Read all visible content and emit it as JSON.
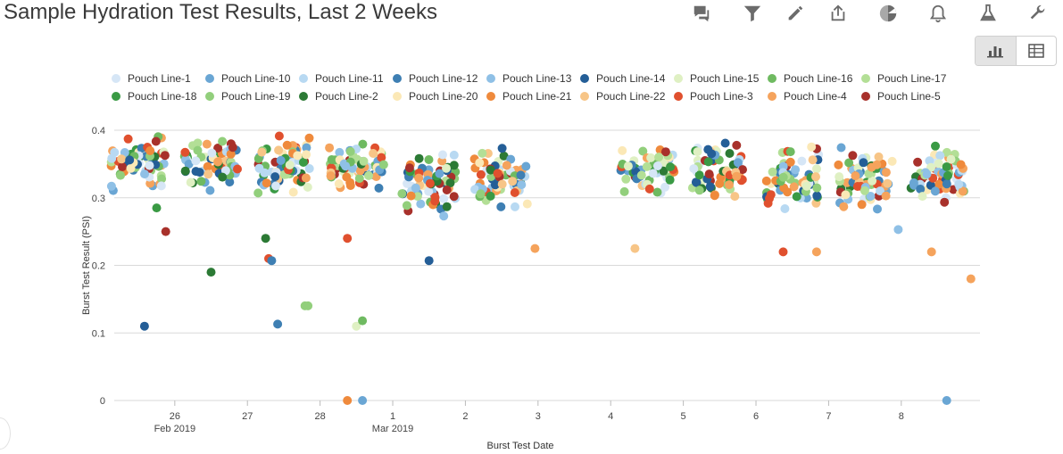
{
  "header": {
    "title": "Sample Hydration Test Results, Last 2 Weeks"
  },
  "toolbar": {
    "icons": [
      "comments-icon",
      "filter-icon",
      "pencil-icon",
      "share-icon",
      "pie-chart-icon",
      "bell-icon",
      "flask-icon",
      "wrench-icon"
    ],
    "view_toggle": [
      "bar-chart-icon",
      "table-icon"
    ],
    "icon_color": "#6b6b6b"
  },
  "chart_data": {
    "type": "scatter",
    "ylabel": "Burst Test Result (PSI)",
    "xlabel": "Burst Test Date",
    "ylim": [
      0,
      0.4
    ],
    "yticks": [
      "0",
      "0.1",
      "0.2",
      "0.3",
      "0.4"
    ],
    "yticks_values": [
      0,
      0.1,
      0.2,
      0.3,
      0.4
    ],
    "xticks": [
      "26",
      "27",
      "28",
      "1",
      "2",
      "3",
      "4",
      "5",
      "6",
      "7",
      "8"
    ],
    "xticks_values": [
      "2019-02-26",
      "2019-02-27",
      "2019-02-28",
      "2019-03-01",
      "2019-03-02",
      "2019-03-03",
      "2019-03-04",
      "2019-03-05",
      "2019-03-06",
      "2019-03-07",
      "2019-03-08"
    ],
    "month_labels": [
      {
        "text": "Feb 2019",
        "date": "2019-02-26"
      },
      {
        "text": "Mar 2019",
        "date": "2019-03-01"
      }
    ],
    "xlim": [
      "2019-02-25T04:00",
      "2019-03-09T02:00"
    ],
    "grid": true,
    "legend_position": "top",
    "series": [
      {
        "name": "Pouch Line-1",
        "color": "#d6e6f6"
      },
      {
        "name": "Pouch Line-10",
        "color": "#6aa6d4"
      },
      {
        "name": "Pouch Line-11",
        "color": "#b8d9f2"
      },
      {
        "name": "Pouch Line-12",
        "color": "#3e7fb3"
      },
      {
        "name": "Pouch Line-13",
        "color": "#8fc0e6"
      },
      {
        "name": "Pouch Line-14",
        "color": "#245e97"
      },
      {
        "name": "Pouch Line-15",
        "color": "#dff0c3"
      },
      {
        "name": "Pouch Line-16",
        "color": "#6fba61"
      },
      {
        "name": "Pouch Line-17",
        "color": "#b3df96"
      },
      {
        "name": "Pouch Line-18",
        "color": "#3a9a44"
      },
      {
        "name": "Pouch Line-19",
        "color": "#92cf7c"
      },
      {
        "name": "Pouch Line-2",
        "color": "#2c7a35"
      },
      {
        "name": "Pouch Line-20",
        "color": "#fbe8b6"
      },
      {
        "name": "Pouch Line-21",
        "color": "#ef8a3c"
      },
      {
        "name": "Pouch Line-22",
        "color": "#f7c587"
      },
      {
        "name": "Pouch Line-3",
        "color": "#e0502e"
      },
      {
        "name": "Pouch Line-4",
        "color": "#f5a35c"
      },
      {
        "name": "Pouch Line-5",
        "color": "#a8312b"
      }
    ],
    "day_clusters": [
      {
        "date": "2019-02-25",
        "count": 70,
        "low": 0.3,
        "high": 0.4
      },
      {
        "date": "2019-02-26",
        "count": 60,
        "low": 0.3,
        "high": 0.4
      },
      {
        "date": "2019-02-27",
        "count": 70,
        "low": 0.3,
        "high": 0.4
      },
      {
        "date": "2019-02-28",
        "count": 70,
        "low": 0.3,
        "high": 0.39
      },
      {
        "date": "2019-03-01",
        "count": 75,
        "low": 0.26,
        "high": 0.38
      },
      {
        "date": "2019-03-02",
        "count": 70,
        "low": 0.27,
        "high": 0.39
      },
      {
        "date": "2019-03-04",
        "count": 60,
        "low": 0.29,
        "high": 0.39
      },
      {
        "date": "2019-03-05",
        "count": 65,
        "low": 0.28,
        "high": 0.4
      },
      {
        "date": "2019-03-06",
        "count": 65,
        "low": 0.27,
        "high": 0.39
      },
      {
        "date": "2019-03-07",
        "count": 65,
        "low": 0.27,
        "high": 0.39
      },
      {
        "date": "2019-03-08",
        "count": 70,
        "low": 0.27,
        "high": 0.39
      }
    ],
    "outliers": [
      {
        "series": "Pouch Line-14",
        "x": "2019-02-25T14:00",
        "y": 0.11
      },
      {
        "series": "Pouch Line-5",
        "x": "2019-02-25T21:00",
        "y": 0.25
      },
      {
        "series": "Pouch Line-18",
        "x": "2019-02-25T18:00",
        "y": 0.285
      },
      {
        "series": "Pouch Line-2",
        "x": "2019-02-26T12:00",
        "y": 0.19
      },
      {
        "series": "Pouch Line-2",
        "x": "2019-02-27T06:00",
        "y": 0.24
      },
      {
        "series": "Pouch Line-3",
        "x": "2019-02-27T07:00",
        "y": 0.21
      },
      {
        "series": "Pouch Line-12",
        "x": "2019-02-27T08:00",
        "y": 0.207
      },
      {
        "series": "Pouch Line-12",
        "x": "2019-02-27T10:00",
        "y": 0.113
      },
      {
        "series": "Pouch Line-19",
        "x": "2019-02-27T19:00",
        "y": 0.14
      },
      {
        "series": "Pouch Line-19",
        "x": "2019-02-27T20:00",
        "y": 0.14
      },
      {
        "series": "Pouch Line-3",
        "x": "2019-02-28T09:00",
        "y": 0.24
      },
      {
        "series": "Pouch Line-15",
        "x": "2019-02-28T12:00",
        "y": 0.11
      },
      {
        "series": "Pouch Line-16",
        "x": "2019-02-28T14:00",
        "y": 0.118
      },
      {
        "series": "Pouch Line-21",
        "x": "2019-02-28T09:00",
        "y": 0
      },
      {
        "series": "Pouch Line-10",
        "x": "2019-02-28T14:00",
        "y": 0
      },
      {
        "series": "Pouch Line-14",
        "x": "2019-03-01T12:00",
        "y": 0.207
      },
      {
        "series": "Pouch Line-4",
        "x": "2019-03-02T23:00",
        "y": 0.225
      },
      {
        "series": "Pouch Line-22",
        "x": "2019-03-04T08:00",
        "y": 0.225
      },
      {
        "series": "Pouch Line-3",
        "x": "2019-03-06T09:00",
        "y": 0.22
      },
      {
        "series": "Pouch Line-4",
        "x": "2019-03-06T20:00",
        "y": 0.22
      },
      {
        "series": "Pouch Line-4",
        "x": "2019-03-08T10:00",
        "y": 0.22
      },
      {
        "series": "Pouch Line-10",
        "x": "2019-03-08T15:00",
        "y": 0
      },
      {
        "series": "Pouch Line-4",
        "x": "2019-03-08T23:00",
        "y": 0.18
      },
      {
        "series": "Pouch Line-13",
        "x": "2019-03-07T23:00",
        "y": 0.253
      }
    ]
  }
}
